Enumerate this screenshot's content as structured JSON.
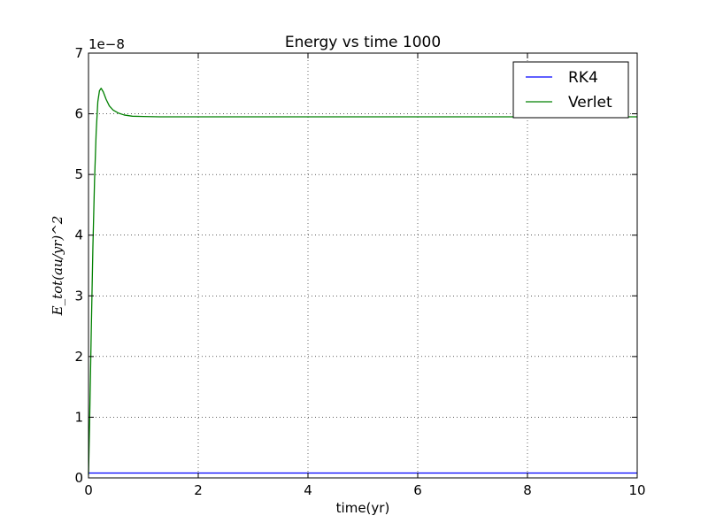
{
  "chart_data": {
    "type": "line",
    "title": "Energy vs time  1000",
    "xlabel": "time(yr)",
    "ylabel": "E_tot(au/yr)^2",
    "y_offset_text": "1e−8",
    "xlim": [
      0,
      10
    ],
    "ylim": [
      0,
      7
    ],
    "x_ticks": [
      0,
      2,
      4,
      6,
      8,
      10
    ],
    "y_ticks": [
      0,
      1,
      2,
      3,
      4,
      5,
      6,
      7
    ],
    "grid": true,
    "legend_position": "top-right",
    "series": [
      {
        "name": "RK4",
        "color": "#0000ff",
        "x": [
          0,
          2,
          4,
          6,
          8,
          10
        ],
        "y": [
          0.08,
          0.08,
          0.08,
          0.08,
          0.08,
          0.08
        ]
      },
      {
        "name": "Verlet",
        "color": "#008000",
        "x": [
          0,
          0.02,
          0.05,
          0.08,
          0.11,
          0.14,
          0.17,
          0.2,
          0.23,
          0.27,
          0.32,
          0.38,
          0.45,
          0.55,
          0.65,
          0.8,
          1.0,
          1.3,
          1.7,
          2.5,
          4,
          6,
          8,
          10
        ],
        "y": [
          0.05,
          0.9,
          2.4,
          3.8,
          4.9,
          5.7,
          6.2,
          6.38,
          6.42,
          6.36,
          6.24,
          6.13,
          6.06,
          6.01,
          5.98,
          5.96,
          5.955,
          5.95,
          5.95,
          5.95,
          5.95,
          5.95,
          5.95,
          5.95
        ]
      }
    ]
  }
}
